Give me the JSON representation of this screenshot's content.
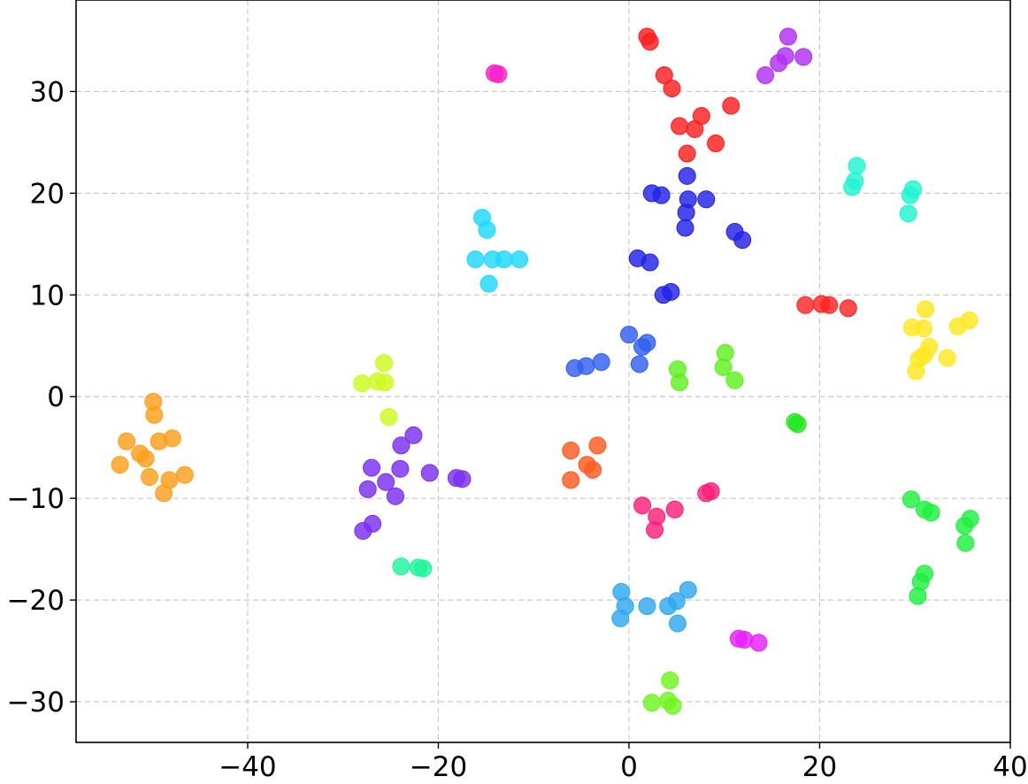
{
  "chart_data": {
    "type": "scatter",
    "title": "",
    "xlabel": "",
    "ylabel": "",
    "xlim": [
      -58,
      40
    ],
    "ylim": [
      -34,
      39
    ],
    "xticks": [
      -40,
      -20,
      0,
      20,
      40
    ],
    "yticks": [
      -30,
      -20,
      -10,
      0,
      10,
      20,
      30
    ],
    "xtick_labels": [
      "−40",
      "−20",
      "0",
      "20",
      "40"
    ],
    "ytick_labels": [
      "−30",
      "−20",
      "−10",
      "0",
      "10",
      "20",
      "30"
    ],
    "grid": true,
    "legend": "none",
    "series": [
      {
        "name": "orange",
        "color": "#ff9f1c",
        "x": [
          -49.9,
          -49.8,
          -52.7,
          -49.3,
          -47.9,
          -53.4,
          -50.7,
          -51.3,
          -48.2,
          -46.6,
          -50.3,
          -48.8
        ],
        "y": [
          -0.5,
          -1.8,
          -4.4,
          -4.4,
          -4.1,
          -6.7,
          -6.1,
          -5.6,
          -8.2,
          -7.7,
          -7.9,
          -9.5
        ]
      },
      {
        "name": "yellow-green",
        "color": "#cdfa1e",
        "x": [
          -25.7,
          -28.0,
          -26.4,
          -25.6,
          -25.2
        ],
        "y": [
          3.3,
          1.3,
          1.5,
          1.4,
          -2.0
        ]
      },
      {
        "name": "violet",
        "color": "#7a2ff0",
        "x": [
          -22.6,
          -23.9,
          -27.0,
          -24.0,
          -25.5,
          -27.4,
          -24.5,
          -20.9,
          -18.1,
          -17.5,
          -26.9,
          -27.9
        ],
        "y": [
          -3.8,
          -4.8,
          -7.0,
          -7.1,
          -8.4,
          -9.1,
          -9.8,
          -7.5,
          -8.0,
          -8.1,
          -12.5,
          -13.2
        ]
      },
      {
        "name": "spring-green",
        "color": "#1ff59a",
        "x": [
          -23.9,
          -22.1,
          -21.6
        ],
        "y": [
          -16.7,
          -16.8,
          -16.9
        ]
      },
      {
        "name": "sky-cyan",
        "color": "#1fd8ff",
        "x": [
          -15.4,
          -14.9,
          -16.1,
          -14.3,
          -13.1,
          -11.5,
          -14.7
        ],
        "y": [
          17.6,
          16.4,
          13.5,
          13.5,
          13.5,
          13.5,
          11.1
        ]
      },
      {
        "name": "magenta-pink",
        "color": "#ff1fc8",
        "x": [
          -14.1,
          -13.7
        ],
        "y": [
          31.8,
          31.7
        ]
      },
      {
        "name": "red",
        "color": "#ff1f1f",
        "x": [
          1.9,
          2.2,
          3.7,
          4.5,
          7.6,
          5.3,
          6.9,
          10.7,
          9.1,
          6.1
        ],
        "y": [
          35.4,
          34.9,
          31.6,
          30.3,
          27.6,
          26.6,
          26.3,
          28.6,
          24.9,
          23.9
        ]
      },
      {
        "name": "purple",
        "color": "#b02ff5",
        "x": [
          16.7,
          16.4,
          15.7,
          18.3,
          14.3
        ],
        "y": [
          35.4,
          33.5,
          32.8,
          33.4,
          31.6
        ]
      },
      {
        "name": "blue",
        "color": "#2222e8",
        "x": [
          6.1,
          2.4,
          3.4,
          6.2,
          8.1,
          6.0,
          5.9,
          11.1,
          11.9,
          0.9,
          2.2,
          3.6,
          4.4
        ],
        "y": [
          21.7,
          20.0,
          19.8,
          19.4,
          19.4,
          18.1,
          16.6,
          16.2,
          15.4,
          13.6,
          13.2,
          10.0,
          10.3
        ]
      },
      {
        "name": "royal-blue",
        "color": "#2f5ff0",
        "x": [
          0.0,
          1.9,
          1.4,
          -5.7,
          -4.5,
          -2.9,
          1.1
        ],
        "y": [
          6.1,
          5.3,
          4.9,
          2.8,
          3.0,
          3.4,
          3.2
        ]
      },
      {
        "name": "aqua",
        "color": "#1ff5d0",
        "x": [
          23.9,
          23.7,
          23.4,
          29.8,
          29.5,
          29.3
        ],
        "y": [
          22.7,
          21.2,
          20.6,
          20.4,
          19.8,
          18.0
        ]
      },
      {
        "name": "red-2",
        "color": "#ff2424",
        "x": [
          18.5,
          20.2,
          21.0,
          23.0
        ],
        "y": [
          9.0,
          9.1,
          9.0,
          8.7
        ]
      },
      {
        "name": "yellow",
        "color": "#ffe81f",
        "x": [
          31.1,
          29.7,
          30.9,
          34.5,
          35.7,
          31.5,
          31.0,
          30.4,
          33.4,
          30.1
        ],
        "y": [
          8.6,
          6.8,
          6.7,
          6.9,
          7.5,
          4.9,
          4.1,
          3.7,
          3.8,
          2.5
        ]
      },
      {
        "name": "lime-green",
        "color": "#5ef01f",
        "x": [
          10.1,
          9.9,
          5.1,
          5.3,
          11.1
        ],
        "y": [
          4.3,
          2.9,
          2.7,
          1.4,
          1.6
        ]
      },
      {
        "name": "green",
        "color": "#22e61f",
        "x": [
          17.4,
          17.7
        ],
        "y": [
          -2.5,
          -2.7
        ]
      },
      {
        "name": "orange-red",
        "color": "#ff5a1f",
        "x": [
          -3.3,
          -6.1,
          -4.4,
          -3.8,
          -6.1
        ],
        "y": [
          -4.8,
          -5.3,
          -6.7,
          -7.2,
          -8.2
        ]
      },
      {
        "name": "rose",
        "color": "#ff1f7a",
        "x": [
          1.4,
          8.6,
          8.1,
          4.8,
          2.9,
          2.7
        ],
        "y": [
          -10.7,
          -9.3,
          -9.5,
          -11.1,
          -11.8,
          -13.1
        ]
      },
      {
        "name": "bright-green",
        "color": "#1ff040",
        "x": [
          29.6,
          31.0,
          31.7,
          35.8,
          35.2,
          35.3,
          31.0,
          30.6,
          30.3
        ],
        "y": [
          -10.1,
          -11.1,
          -11.4,
          -12.0,
          -12.7,
          -14.4,
          -17.4,
          -18.2,
          -19.6
        ]
      },
      {
        "name": "azure",
        "color": "#2fa8f0",
        "x": [
          -0.8,
          6.2,
          -0.4,
          1.9,
          5.0,
          4.1,
          -0.9,
          5.1
        ],
        "y": [
          -19.2,
          -19.0,
          -20.6,
          -20.6,
          -20.1,
          -20.6,
          -21.8,
          -22.3
        ]
      },
      {
        "name": "fuchsia",
        "color": "#e81fff",
        "x": [
          11.5,
          12.1,
          13.6
        ],
        "y": [
          -23.8,
          -23.9,
          -24.2
        ]
      },
      {
        "name": "chartreuse",
        "color": "#6ef51f",
        "x": [
          4.3,
          2.4,
          4.1,
          4.6
        ],
        "y": [
          -27.9,
          -30.1,
          -29.9,
          -30.4
        ]
      }
    ]
  }
}
